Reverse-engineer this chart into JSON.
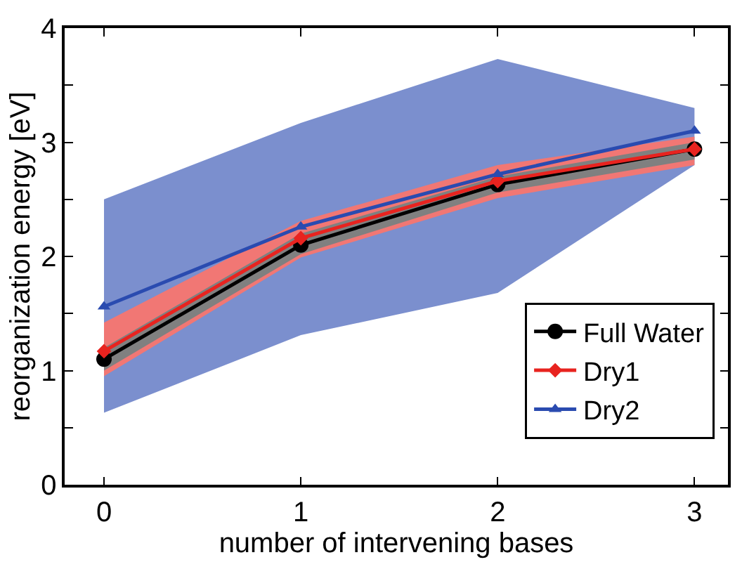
{
  "chart_data": {
    "type": "line",
    "xlabel": "number of intervening bases",
    "ylabel": "reorganization energy [eV]",
    "x": [
      0,
      1,
      2,
      3
    ],
    "series": [
      {
        "name": "Dry2",
        "color": "#2a4bb0",
        "marker": "triangle",
        "values": [
          1.56,
          2.26,
          2.72,
          3.1
        ],
        "lower": [
          0.63,
          1.31,
          1.68,
          2.8
        ],
        "upper": [
          2.5,
          3.17,
          3.73,
          3.3
        ]
      },
      {
        "name": "Dry1",
        "color": "#e8231f",
        "marker": "diamond",
        "values": [
          1.17,
          2.16,
          2.66,
          2.94
        ],
        "lower": [
          0.95,
          1.99,
          2.51,
          2.8
        ],
        "upper": [
          1.42,
          2.31,
          2.8,
          3.05
        ]
      },
      {
        "name": "Full Water",
        "color": "#000000",
        "marker": "circle",
        "values": [
          1.1,
          2.1,
          2.63,
          2.94
        ],
        "lower": [
          1.0,
          2.02,
          2.56,
          2.85
        ],
        "upper": [
          1.2,
          2.2,
          2.7,
          3.0
        ]
      }
    ],
    "xlim": [
      -0.2,
      3.17
    ],
    "xticks": [
      0,
      1,
      2,
      3
    ],
    "ylim": [
      0,
      4
    ],
    "yticks": [
      0,
      {
        "value": 0.5,
        "label": null
      },
      1,
      {
        "value": 1.5,
        "label": null
      },
      2,
      {
        "value": 2.5,
        "label": null
      },
      3,
      {
        "value": 3.5,
        "label": null
      },
      4
    ],
    "legend": "bottom right",
    "line_style": "solid"
  }
}
